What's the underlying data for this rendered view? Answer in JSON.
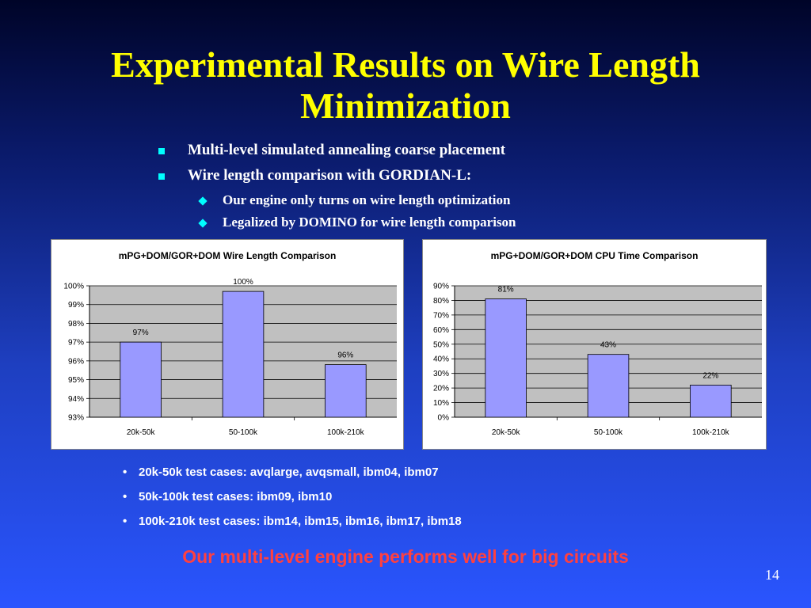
{
  "title": "Experimental Results on Wire Length Minimization",
  "bullets": [
    {
      "level": 1,
      "text": "Multi-level simulated annealing coarse placement"
    },
    {
      "level": 1,
      "text": "Wire length comparison with GORDIAN-L:"
    },
    {
      "level": 2,
      "text": "Our engine only turns on wire length optimization"
    },
    {
      "level": 2,
      "text": "Legalized by DOMINO for wire length comparison"
    }
  ],
  "chart_data": [
    {
      "type": "bar",
      "title": "mPG+DOM/GOR+DOM Wire Length Comparison",
      "categories": [
        "20k-50k",
        "50-100k",
        "100k-210k"
      ],
      "values": [
        97,
        99.7,
        95.8
      ],
      "data_labels": [
        "97%",
        "100%",
        "96%"
      ],
      "ylim": [
        93,
        100
      ],
      "yticks": [
        "93%",
        "94%",
        "95%",
        "96%",
        "97%",
        "98%",
        "99%",
        "100%"
      ],
      "grid": true,
      "legend": "none"
    },
    {
      "type": "bar",
      "title": "mPG+DOM/GOR+DOM CPU Time Comparison",
      "categories": [
        "20k-50k",
        "50-100k",
        "100k-210k"
      ],
      "values": [
        81,
        43,
        22
      ],
      "data_labels": [
        "81%",
        "43%",
        "22%"
      ],
      "ylim": [
        0,
        90
      ],
      "yticks": [
        "0%",
        "10%",
        "20%",
        "30%",
        "40%",
        "50%",
        "60%",
        "70%",
        "80%",
        "90%"
      ],
      "grid": true,
      "legend": "none"
    }
  ],
  "notes": [
    "20k-50k test cases: avqlarge, avqsmall, ibm04, ibm07",
    "50k-100k test cases: ibm09, ibm10",
    "100k-210k test cases: ibm14, ibm15, ibm16, ibm17, ibm18"
  ],
  "tagline": "Our multi-level engine performs well for big circuits",
  "page_number": "14",
  "colors": {
    "title": "#ffff00",
    "bullet_marker": "#00ffff",
    "bar_fill": "#9999ff",
    "plot_bg": "#c0c0c0",
    "tagline": "#ff4040"
  }
}
